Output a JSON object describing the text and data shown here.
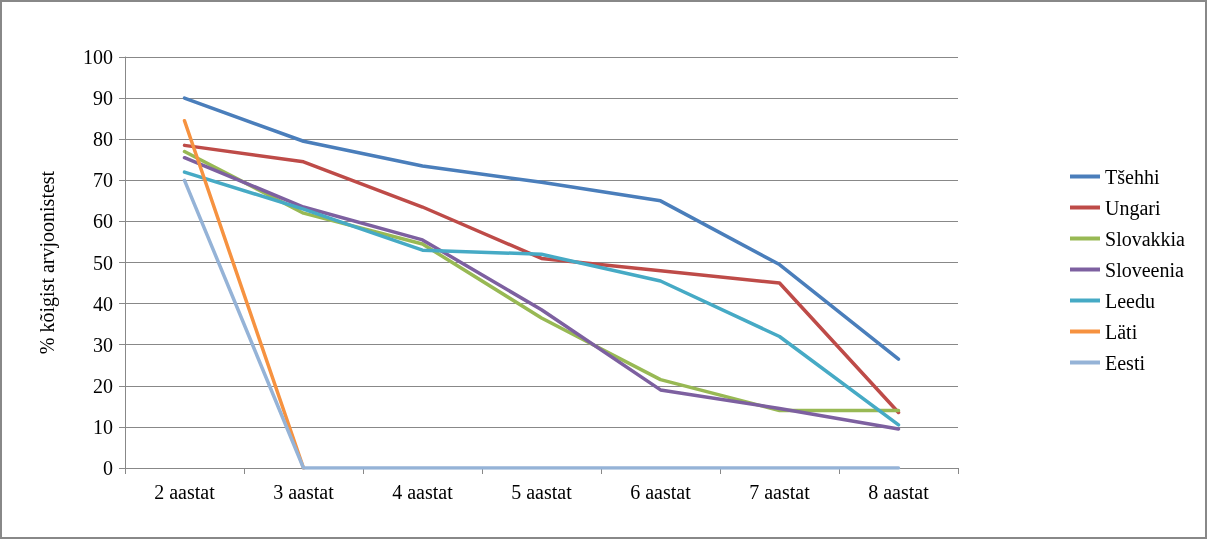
{
  "chart_data": {
    "type": "line",
    "ylabel": "% kõigist arvjoonistest",
    "categories": [
      "2 aastat",
      "3 aastat",
      "4 aastat",
      "5 aastat",
      "6 aastat",
      "7 aastat",
      "8 aastat"
    ],
    "ylim": [
      0,
      100
    ],
    "yticks": [
      0,
      10,
      20,
      30,
      40,
      50,
      60,
      70,
      80,
      90,
      100
    ],
    "grid": "y",
    "legend": "right",
    "marker": "none",
    "line_style": "solid",
    "series": [
      {
        "name": "Tšehhi",
        "color": "#4a7ebb",
        "values": [
          90,
          79.5,
          73.5,
          69.5,
          65,
          49.5,
          26.5
        ]
      },
      {
        "name": "Ungari",
        "color": "#be4b48",
        "values": [
          78.5,
          74.5,
          63.5,
          51,
          48,
          45,
          13.5
        ]
      },
      {
        "name": "Slovakkia",
        "color": "#98b954",
        "values": [
          77,
          62,
          54.5,
          36.5,
          21.5,
          14,
          14
        ]
      },
      {
        "name": "Sloveenia",
        "color": "#7d60a0",
        "values": [
          75.5,
          63.5,
          55.5,
          38.5,
          19,
          14.5,
          9.5
        ]
      },
      {
        "name": "Leedu",
        "color": "#46aac5",
        "values": [
          72,
          63,
          53,
          52,
          45.5,
          32,
          10.5
        ]
      },
      {
        "name": "Läti",
        "color": "#f69240",
        "values": [
          84.5,
          0,
          null,
          null,
          null,
          null,
          null
        ]
      },
      {
        "name": "Eesti",
        "color": "#95b3d7",
        "values": [
          70,
          0,
          0,
          0,
          0,
          0,
          0
        ]
      }
    ]
  }
}
